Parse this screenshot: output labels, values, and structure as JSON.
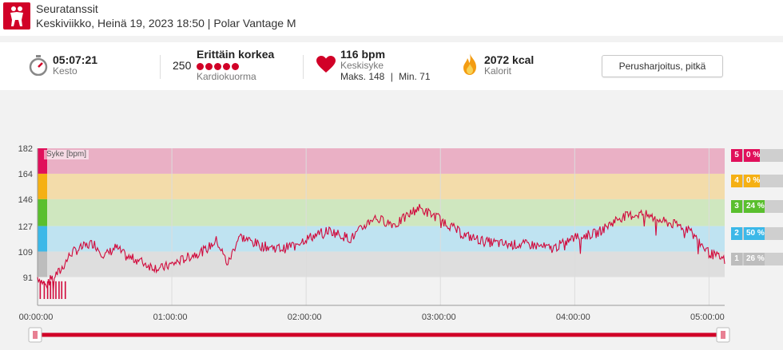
{
  "header": {
    "title": "Seuratanssit",
    "subtitle": "Keskiviikko, Heinä 19, 2023 18:50 | Polar Vantage M",
    "sport_icon": "dancing-couple-icon"
  },
  "summary": {
    "duration": {
      "value": "05:07:21",
      "label": "Kesto",
      "icon": "stopwatch-icon"
    },
    "training_load": {
      "value": "250",
      "level": "Erittäin korkea",
      "dots": 5,
      "label": "Kardiokuorma"
    },
    "heart_rate": {
      "value": "116 bpm",
      "label": "Keskisyke",
      "max": "Maks. 148",
      "sep": "|",
      "min": "Min. 71",
      "icon": "heart-icon"
    },
    "calories": {
      "value": "2072 kcal",
      "label": "Kalorit",
      "icon": "flame-icon"
    },
    "training_type_button": "Perusharjoitus, pitkä"
  },
  "chart": {
    "legend": "Syke [bpm]",
    "y_ticks": [
      "182",
      "164",
      "146",
      "127",
      "109",
      "91"
    ],
    "x_ticks": [
      "00:00:00",
      "01:00:00",
      "02:00:00",
      "03:00:00",
      "04:00:00",
      "05:00:00"
    ],
    "zones": [
      {
        "num": "5",
        "pct": "0 %",
        "color": "#e0105b",
        "band": "#eab0c5"
      },
      {
        "num": "4",
        "pct": "0 %",
        "color": "#f5b014",
        "band": "#f3dcaa"
      },
      {
        "num": "3",
        "pct": "24 %",
        "color": "#5abf2e",
        "band": "#cfe7bf"
      },
      {
        "num": "2",
        "pct": "50 %",
        "color": "#3cb8e8",
        "band": "#bfe3f1"
      },
      {
        "num": "1",
        "pct": "26 %",
        "color": "#bdbdbd",
        "band": "#dedede"
      }
    ],
    "line_color": "#d10a3c"
  },
  "chart_data": {
    "type": "line",
    "title": "Syke [bpm]",
    "xlabel": "",
    "ylabel": "",
    "x_unit": "minutes",
    "ylim": [
      71,
      182
    ],
    "x": [
      0,
      2,
      4,
      6,
      10,
      15,
      20,
      25,
      30,
      35,
      40,
      45,
      50,
      55,
      60,
      70,
      75,
      80,
      85,
      90,
      100,
      110,
      120,
      130,
      140,
      150,
      160,
      170,
      180,
      190,
      200,
      210,
      220,
      230,
      240,
      250,
      260,
      270,
      280,
      290,
      300,
      307
    ],
    "y": [
      91,
      88,
      84,
      90,
      95,
      108,
      112,
      115,
      106,
      112,
      105,
      103,
      99,
      97,
      100,
      107,
      110,
      117,
      100,
      120,
      113,
      111,
      118,
      124,
      118,
      133,
      128,
      140,
      132,
      121,
      116,
      114,
      114,
      111,
      119,
      122,
      133,
      136,
      130,
      126,
      108,
      103
    ],
    "series": [
      {
        "name": "Syke [bpm]"
      }
    ]
  }
}
